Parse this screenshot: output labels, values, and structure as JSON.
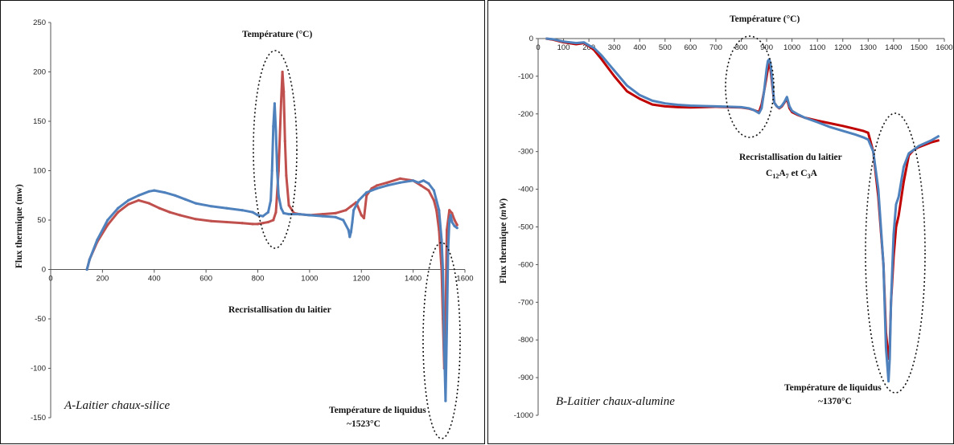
{
  "chart_data": [
    {
      "type": "line",
      "panel_label": "A-Laitier chaux-silice",
      "title": "Température (°C)",
      "ylabel": "Flux thermique  (mw)",
      "xlim": [
        0,
        1600
      ],
      "ylim": [
        -150,
        250
      ],
      "x_ticks": [
        "0",
        "200",
        "400",
        "600",
        "800",
        "1000",
        "1200",
        "1400",
        "1600"
      ],
      "y_ticks": [
        "250",
        "200",
        "150",
        "100",
        "50",
        "0",
        "-50",
        "-100",
        "-150"
      ],
      "colors": [
        "#c0504d",
        "#4f81bd"
      ],
      "annotations": [
        "Recristallisation du laitier",
        "Température de liquidus",
        "~1523°C"
      ],
      "series": [
        {
          "color": "#c0504d",
          "x": [
            140,
            150,
            180,
            220,
            260,
            300,
            340,
            380,
            420,
            460,
            500,
            560,
            620,
            680,
            740,
            780,
            800,
            820,
            840,
            860,
            870,
            880,
            890,
            895,
            900,
            905,
            910,
            920,
            940,
            960,
            1000,
            1050,
            1100,
            1140,
            1160,
            1180,
            1200,
            1210,
            1220,
            1240,
            1260,
            1300,
            1350,
            1400,
            1430,
            1460,
            1480,
            1490,
            1500,
            1510,
            1515,
            1520,
            1525,
            1530,
            1540,
            1550,
            1560,
            1570
          ],
          "y": [
            0,
            10,
            28,
            45,
            58,
            66,
            70,
            67,
            62,
            58,
            55,
            51,
            49,
            48,
            47,
            46,
            46,
            47,
            48,
            50,
            58,
            100,
            170,
            200,
            180,
            130,
            95,
            65,
            57,
            56,
            55,
            56,
            57,
            60,
            64,
            68,
            55,
            52,
            75,
            82,
            85,
            88,
            92,
            90,
            85,
            80,
            70,
            60,
            40,
            0,
            -50,
            -100,
            -60,
            40,
            60,
            57,
            50,
            45
          ]
        },
        {
          "color": "#4f81bd",
          "x": [
            140,
            150,
            180,
            220,
            260,
            300,
            340,
            380,
            400,
            440,
            480,
            520,
            560,
            620,
            680,
            740,
            780,
            800,
            820,
            840,
            850,
            855,
            860,
            865,
            870,
            875,
            880,
            890,
            900,
            920,
            960,
            1000,
            1050,
            1100,
            1130,
            1150,
            1155,
            1160,
            1165,
            1170,
            1190,
            1220,
            1260,
            1300,
            1350,
            1400,
            1420,
            1440,
            1460,
            1480,
            1500,
            1510,
            1515,
            1520,
            1525,
            1530,
            1535,
            1540,
            1545,
            1550,
            1560,
            1570
          ],
          "y": [
            0,
            10,
            30,
            50,
            62,
            70,
            75,
            79,
            80,
            78,
            75,
            71,
            67,
            64,
            62,
            60,
            58,
            55,
            54,
            58,
            70,
            100,
            145,
            168,
            140,
            100,
            75,
            62,
            57,
            56,
            56,
            55,
            54,
            53,
            50,
            40,
            33,
            38,
            48,
            60,
            70,
            78,
            82,
            85,
            88,
            90,
            88,
            90,
            87,
            80,
            60,
            30,
            0,
            -80,
            -133,
            -60,
            20,
            50,
            55,
            48,
            44,
            42
          ]
        }
      ]
    },
    {
      "type": "line",
      "panel_label": "B-Laitier chaux-alumine",
      "title": "Température (°C)",
      "ylabel": "Flux thermique  (mW)",
      "xlim": [
        0,
        1600
      ],
      "ylim": [
        -1000,
        0
      ],
      "x_ticks": [
        "0",
        "100",
        "200",
        "300",
        "400",
        "500",
        "600",
        "700",
        "800",
        "900",
        "1000",
        "1100",
        "1200",
        "1300",
        "1400",
        "1500",
        "1600"
      ],
      "y_ticks": [
        "0",
        "-100",
        "-200",
        "-300",
        "-400",
        "-500",
        "-600",
        "-700",
        "-800",
        "-900",
        "-1000"
      ],
      "colors": [
        "#c00000",
        "#4f81bd"
      ],
      "annotations": [
        "Recristallisation du laitier",
        "C12A7 et C3A",
        "Température de liquidus",
        "~1370°C"
      ],
      "series": [
        {
          "color": "#c00000",
          "x": [
            30,
            60,
            100,
            150,
            180,
            200,
            220,
            250,
            300,
            350,
            400,
            450,
            500,
            550,
            600,
            650,
            700,
            750,
            800,
            830,
            850,
            870,
            880,
            890,
            900,
            905,
            910,
            915,
            920,
            930,
            940,
            950,
            960,
            970,
            980,
            990,
            1000,
            1020,
            1050,
            1100,
            1150,
            1200,
            1250,
            1280,
            1300,
            1320,
            1340,
            1360,
            1370,
            1380,
            1385,
            1390,
            1400,
            1410,
            1420,
            1440,
            1460,
            1480,
            1500,
            1550,
            1580
          ],
          "y": [
            0,
            -3,
            -10,
            -15,
            -12,
            -20,
            -30,
            -55,
            -100,
            -140,
            -160,
            -175,
            -180,
            -182,
            -183,
            -182,
            -181,
            -182,
            -183,
            -186,
            -190,
            -195,
            -175,
            -140,
            -100,
            -80,
            -68,
            -80,
            -110,
            -170,
            -180,
            -185,
            -180,
            -170,
            -160,
            -185,
            -195,
            -202,
            -210,
            -218,
            -225,
            -232,
            -240,
            -245,
            -250,
            -300,
            -420,
            -600,
            -780,
            -850,
            -820,
            -700,
            -580,
            -500,
            -470,
            -380,
            -310,
            -295,
            -288,
            -275,
            -270
          ]
        },
        {
          "color": "#4f81bd",
          "x": [
            30,
            60,
            100,
            150,
            180,
            200,
            220,
            250,
            300,
            350,
            400,
            450,
            500,
            550,
            600,
            650,
            700,
            750,
            800,
            830,
            850,
            870,
            880,
            890,
            900,
            905,
            910,
            915,
            920,
            930,
            940,
            950,
            960,
            970,
            980,
            990,
            1000,
            1020,
            1050,
            1100,
            1150,
            1200,
            1250,
            1280,
            1300,
            1320,
            1340,
            1360,
            1370,
            1380,
            1385,
            1390,
            1400,
            1410,
            1420,
            1440,
            1460,
            1480,
            1500,
            1550,
            1580
          ],
          "y": [
            0,
            -2,
            -8,
            -12,
            -10,
            -18,
            -25,
            -45,
            -85,
            -125,
            -150,
            -165,
            -172,
            -176,
            -178,
            -179,
            -180,
            -181,
            -182,
            -185,
            -190,
            -198,
            -185,
            -140,
            -80,
            -60,
            -55,
            -65,
            -100,
            -170,
            -180,
            -184,
            -178,
            -168,
            -155,
            -180,
            -192,
            -200,
            -210,
            -222,
            -235,
            -245,
            -255,
            -262,
            -268,
            -300,
            -400,
            -600,
            -820,
            -910,
            -850,
            -700,
            -520,
            -440,
            -420,
            -340,
            -305,
            -295,
            -285,
            -270,
            -258
          ]
        }
      ]
    }
  ],
  "labels": {
    "a_title": "Température (°C)",
    "a_ylabel": "Flux thermique  (mw)",
    "a_recrist": "Recristallisation du laitier",
    "a_liq1": "Température de liquidus",
    "a_liq2": "~1523°C",
    "a_panel": "A-Laitier chaux-silice",
    "b_title": "Température (°C)",
    "b_ylabel_pre": "Flux thermique  (",
    "b_ylabel_unit": "mW",
    "b_ylabel_post": ")",
    "b_recrist": "Recristallisation du laitier",
    "b_c12": "C",
    "b_c12_sub": "12",
    "b_a7": "A",
    "b_a7_sub": "7",
    "b_et": " et C",
    "b_c3_sub": "3",
    "b_a": "A",
    "b_liq1": "Température de liquidus",
    "b_liq2": "~1370°C",
    "b_panel": "B-Laitier chaux-alumine"
  }
}
